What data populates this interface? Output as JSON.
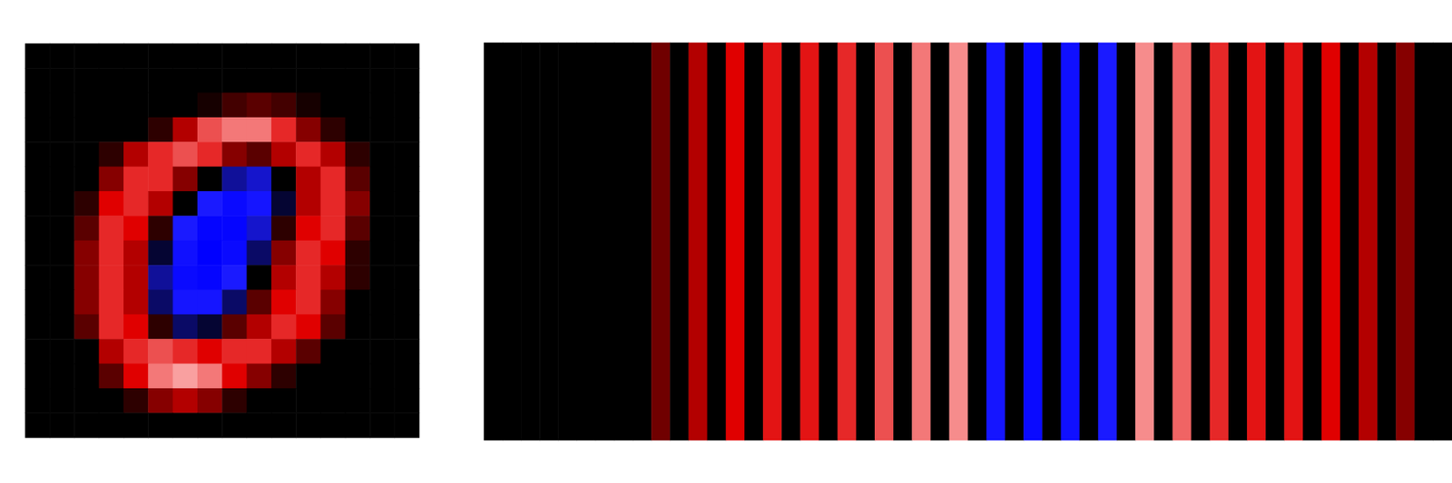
{
  "chart_data": [
    {
      "type": "heatmap",
      "tick_labels": false,
      "value_range": [
        -1,
        1
      ],
      "cells": [
        [
          0,
          0,
          0,
          0,
          0,
          0,
          0,
          0,
          0,
          0,
          0,
          0,
          0,
          0,
          0,
          0
        ],
        [
          0,
          0,
          0,
          0,
          0,
          0,
          0,
          0,
          0,
          0,
          0,
          0,
          0,
          0,
          0,
          0
        ],
        [
          0,
          0,
          0,
          0,
          0,
          0,
          0,
          0.05,
          0.15,
          0.2,
          0.15,
          0.05,
          0,
          0,
          0,
          0
        ],
        [
          0,
          0,
          0,
          0,
          0,
          0.1,
          0.4,
          0.7,
          0.8,
          0.8,
          0.6,
          0.3,
          0.1,
          0,
          0,
          0
        ],
        [
          0,
          0,
          0,
          0.1,
          0.4,
          0.6,
          0.7,
          0.6,
          0.3,
          0.2,
          0.4,
          0.6,
          0.4,
          0.1,
          0,
          0
        ],
        [
          0,
          0,
          0,
          0.3,
          0.6,
          0.6,
          0.3,
          0,
          -0.3,
          -0.4,
          0,
          0.4,
          0.6,
          0.2,
          0,
          0
        ],
        [
          0,
          0,
          0.1,
          0.5,
          0.6,
          0.4,
          0,
          -0.5,
          -0.8,
          -0.6,
          -0.1,
          0.4,
          0.6,
          0.3,
          0,
          0
        ],
        [
          0,
          0,
          0.2,
          0.6,
          0.5,
          0.1,
          -0.5,
          -0.9,
          -0.9,
          -0.4,
          0.1,
          0.5,
          0.6,
          0.2,
          0,
          0
        ],
        [
          0,
          0,
          0.3,
          0.6,
          0.4,
          -0.1,
          -0.7,
          -1,
          -0.8,
          -0.2,
          0.3,
          0.6,
          0.5,
          0.1,
          0,
          0
        ],
        [
          0,
          0,
          0.3,
          0.6,
          0.4,
          -0.3,
          -0.8,
          -0.9,
          -0.5,
          0,
          0.4,
          0.6,
          0.4,
          0.1,
          0,
          0
        ],
        [
          0,
          0,
          0.3,
          0.6,
          0.4,
          -0.2,
          -0.6,
          -0.6,
          -0.2,
          0.2,
          0.5,
          0.6,
          0.3,
          0,
          0,
          0
        ],
        [
          0,
          0,
          0.2,
          0.6,
          0.5,
          0.1,
          -0.2,
          -0.1,
          0.2,
          0.4,
          0.6,
          0.5,
          0.2,
          0,
          0,
          0
        ],
        [
          0,
          0,
          0,
          0.4,
          0.6,
          0.7,
          0.6,
          0.5,
          0.6,
          0.6,
          0.4,
          0.2,
          0,
          0,
          0,
          0
        ],
        [
          0,
          0,
          0,
          0.2,
          0.5,
          0.8,
          0.9,
          0.8,
          0.5,
          0.3,
          0.1,
          0,
          0,
          0,
          0,
          0
        ],
        [
          0,
          0,
          0,
          0,
          0.1,
          0.3,
          0.4,
          0.3,
          0.1,
          0,
          0,
          0,
          0,
          0,
          0,
          0
        ],
        [
          0,
          0,
          0,
          0,
          0,
          0,
          0,
          0,
          0,
          0,
          0,
          0,
          0,
          0,
          0,
          0
        ]
      ]
    },
    {
      "type": "heatmap",
      "tick_labels": false,
      "value_range": [
        -1,
        1
      ],
      "cells": [
        [
          0,
          0,
          0,
          0,
          0,
          0,
          0,
          0,
          0,
          0.25,
          0,
          0.4,
          0,
          0.5,
          0,
          0.55,
          0,
          0.55,
          0,
          0.6,
          0,
          0.7,
          0,
          0.8,
          0,
          0.85,
          0,
          -0.6,
          0,
          -0.8,
          0,
          -0.7,
          0,
          -0.5,
          0,
          0.85,
          0,
          0.75,
          0,
          0.6,
          0,
          0.55,
          0,
          0.55,
          0,
          0.5,
          0,
          0.4,
          0,
          0.3,
          0,
          0
        ]
      ]
    }
  ]
}
